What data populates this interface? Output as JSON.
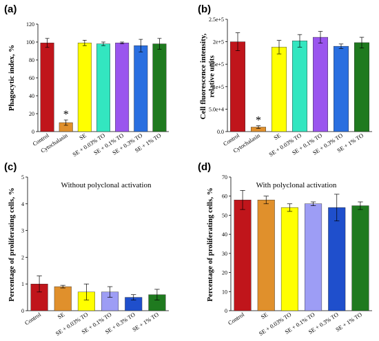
{
  "chart_data": [
    {
      "panel": "(a)",
      "type": "bar",
      "ylabel": "Phagocytic index, %",
      "ylim": [
        0,
        120
      ],
      "yticks": [
        "0",
        "20",
        "40",
        "60",
        "80",
        "100",
        "120"
      ],
      "categories": [
        "Control",
        "Cytochalasin",
        "SE",
        "SE + 0.03% TO",
        "SE + 0.1% TO",
        "SE + 0.3% TO",
        "SE + 1% TO"
      ],
      "values": [
        99,
        10,
        99,
        98,
        99,
        96,
        98
      ],
      "errors": [
        5,
        3,
        3,
        2,
        1,
        7,
        6
      ],
      "colors": [
        "#c0151b",
        "#e0902c",
        "#ffff00",
        "#33e6c0",
        "#9a55ee",
        "#2a6fe0",
        "#1f7a1f"
      ],
      "significance": [
        {
          "category": "Cytochalasin",
          "mark": "*"
        }
      ]
    },
    {
      "panel": "(b)",
      "type": "bar",
      "ylabel": "Cell fluorescence intensity, relative units",
      "ylim": [
        0,
        250000
      ],
      "yticks": [
        "0.0",
        "5.0e+4",
        "1e+5",
        "1.5e+5",
        "2e+5",
        "2.5e+5"
      ],
      "categories": [
        "Control",
        "Cytochalasin",
        "SE",
        "SE + 0.03% TO",
        "SE + 0.1% TO",
        "SE + 0.3% TO",
        "SE + 1% TO"
      ],
      "values": [
        200000,
        10000,
        188000,
        202000,
        210000,
        190000,
        198000
      ],
      "errors": [
        20000,
        3000,
        15000,
        14000,
        13000,
        5000,
        12000
      ],
      "colors": [
        "#c0151b",
        "#e0902c",
        "#ffff00",
        "#33e6c0",
        "#9a55ee",
        "#2a6fe0",
        "#1f7a1f"
      ],
      "significance": [
        {
          "category": "Cytochalasin",
          "mark": "*"
        }
      ]
    },
    {
      "panel": "(c)",
      "type": "bar",
      "title": "Without polyclonal activation",
      "ylabel": "Percentage of proliferating cells, %",
      "ylim": [
        0,
        5
      ],
      "yticks": [
        "0",
        "1",
        "2",
        "3",
        "4",
        "5"
      ],
      "categories": [
        "Control",
        "SE",
        "SE + 0.03% TO",
        "SE + 0.1% TO",
        "SE + 0.3% TO",
        "SE + 1% TO"
      ],
      "values": [
        1.0,
        0.9,
        0.7,
        0.7,
        0.5,
        0.6
      ],
      "errors": [
        0.3,
        0.05,
        0.3,
        0.2,
        0.1,
        0.2
      ],
      "colors": [
        "#c0151b",
        "#e0902c",
        "#ffff00",
        "#9d9df5",
        "#1f4fcc",
        "#1f7a1f"
      ]
    },
    {
      "panel": "(d)",
      "type": "bar",
      "title": "With polyclonal activation",
      "ylabel": "Percentage of proliferating cells, %",
      "ylim": [
        0,
        70
      ],
      "yticks": [
        "0",
        "10",
        "20",
        "30",
        "40",
        "50",
        "60",
        "70"
      ],
      "categories": [
        "Control",
        "SE",
        "SE + 0.03% TO",
        "SE + 0.1% TO",
        "SE + 0.3% TO",
        "SE + 1% TO"
      ],
      "values": [
        58,
        58,
        54,
        56,
        54,
        55
      ],
      "errors": [
        5,
        2,
        2,
        1,
        7,
        2
      ],
      "colors": [
        "#c0151b",
        "#e0902c",
        "#ffff00",
        "#9d9df5",
        "#1f4fcc",
        "#1f7a1f"
      ]
    }
  ]
}
